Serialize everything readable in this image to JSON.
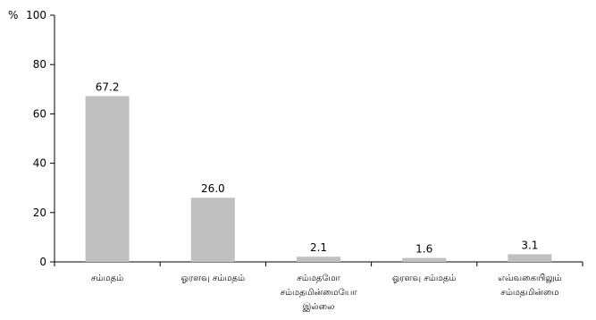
{
  "chart_data": {
    "type": "bar",
    "ylabel": "%",
    "ylim": [
      0,
      100
    ],
    "yticks": [
      0,
      20,
      40,
      60,
      80,
      100
    ],
    "grid": false,
    "categories": [
      [
        "சம்மதம்"
      ],
      [
        "ஓரளவு சம்மதம்"
      ],
      [
        "சம்மதமோ",
        "சம்மதமின்மையோ",
        "இல்லை"
      ],
      [
        "ஓரளவு சம்மதம்"
      ],
      [
        "எவ்வகையிலும்",
        "சம்மதமின்மை"
      ]
    ],
    "values": [
      67.2,
      26.0,
      2.1,
      1.6,
      3.1
    ],
    "value_labels": [
      "67.2",
      "26.0",
      "2.1",
      "1.6",
      "3.1"
    ],
    "colors": {
      "bar": "#c0c0c0",
      "axis": "#000000"
    }
  }
}
